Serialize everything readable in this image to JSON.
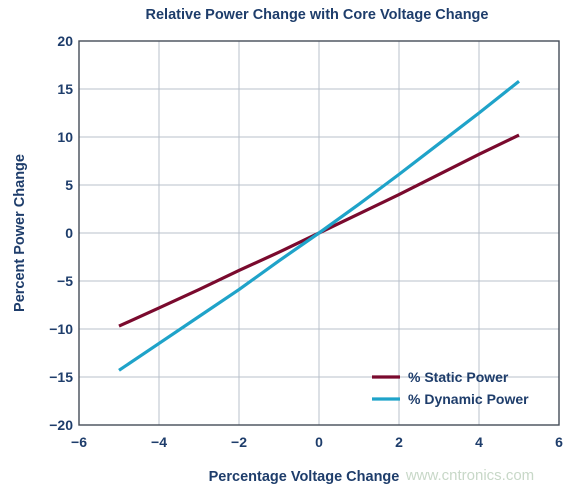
{
  "chart_data": {
    "type": "line",
    "title": "Relative Power Change with Core Voltage Change",
    "xlabel": "Percentage Voltage Change",
    "ylabel": "Percent Power Change",
    "xlim": [
      -6,
      6
    ],
    "ylim": [
      -20,
      20
    ],
    "xticks": [
      -6,
      -4,
      -2,
      0,
      2,
      4,
      6
    ],
    "yticks": [
      -20,
      -15,
      -10,
      -5,
      0,
      5,
      10,
      15,
      20
    ],
    "xtick_labels": [
      "−6",
      "−4",
      "−2",
      "0",
      "2",
      "4",
      "6"
    ],
    "ytick_labels": [
      "−20",
      "−15",
      "−10",
      "−5",
      "0",
      "5",
      "10",
      "15",
      "20"
    ],
    "grid": true,
    "legend_position": "bottom-right",
    "series": [
      {
        "name": "% Static Power",
        "color": "#7a0a2e",
        "x": [
          -5,
          -4,
          -3,
          -2,
          -1,
          0,
          1,
          2,
          3,
          4,
          5
        ],
        "y": [
          -9.7,
          -7.8,
          -5.9,
          -3.9,
          -2.0,
          0,
          2.0,
          4.0,
          6.1,
          8.2,
          10.2
        ]
      },
      {
        "name": "% Dynamic Power",
        "color": "#1fa3c9",
        "x": [
          -5,
          -4,
          -3,
          -2,
          -1,
          0,
          1,
          2,
          3,
          4,
          5
        ],
        "y": [
          -14.3,
          -11.5,
          -8.7,
          -5.9,
          -2.9,
          0,
          3.0,
          6.1,
          9.3,
          12.5,
          15.8
        ]
      }
    ]
  },
  "watermark": "www.cntronics.com"
}
